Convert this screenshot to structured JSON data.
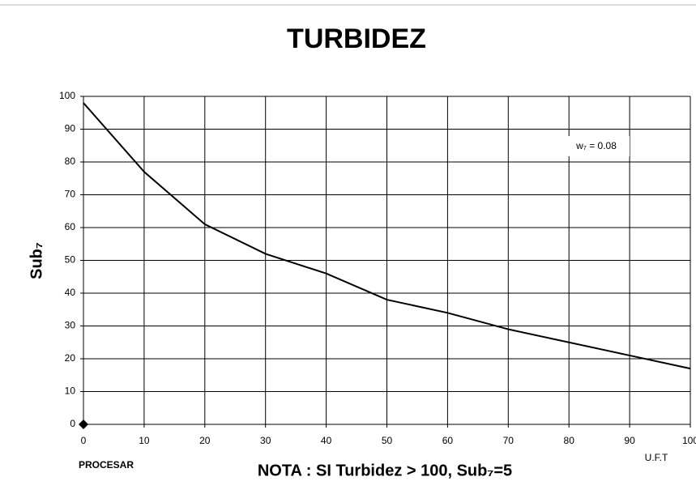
{
  "chart_data": {
    "type": "line",
    "title": "TURBIDEZ",
    "y_label": "Sub₇",
    "x_label": "U.F.T",
    "annotation": "w₇ = 0.08",
    "note": "NOTA : SI Turbidez > 100, Sub₇=5",
    "button": "PROCESAR",
    "x": [
      0,
      10,
      20,
      30,
      40,
      50,
      60,
      70,
      80,
      90,
      100
    ],
    "series": [
      {
        "name": "Sub₇",
        "color": "#000000",
        "values": [
          98,
          77,
          61,
          52,
          46,
          38,
          34,
          29,
          25,
          21,
          17
        ]
      }
    ],
    "marker": {
      "x": 0,
      "y": 0
    },
    "xlim": [
      0,
      100
    ],
    "xticks": [
      0,
      10,
      20,
      30,
      40,
      50,
      60,
      70,
      80,
      90,
      100
    ],
    "ylim": [
      0,
      100
    ],
    "yticks": [
      0,
      10,
      20,
      30,
      40,
      50,
      60,
      70,
      80,
      90,
      100
    ],
    "grid": true
  }
}
